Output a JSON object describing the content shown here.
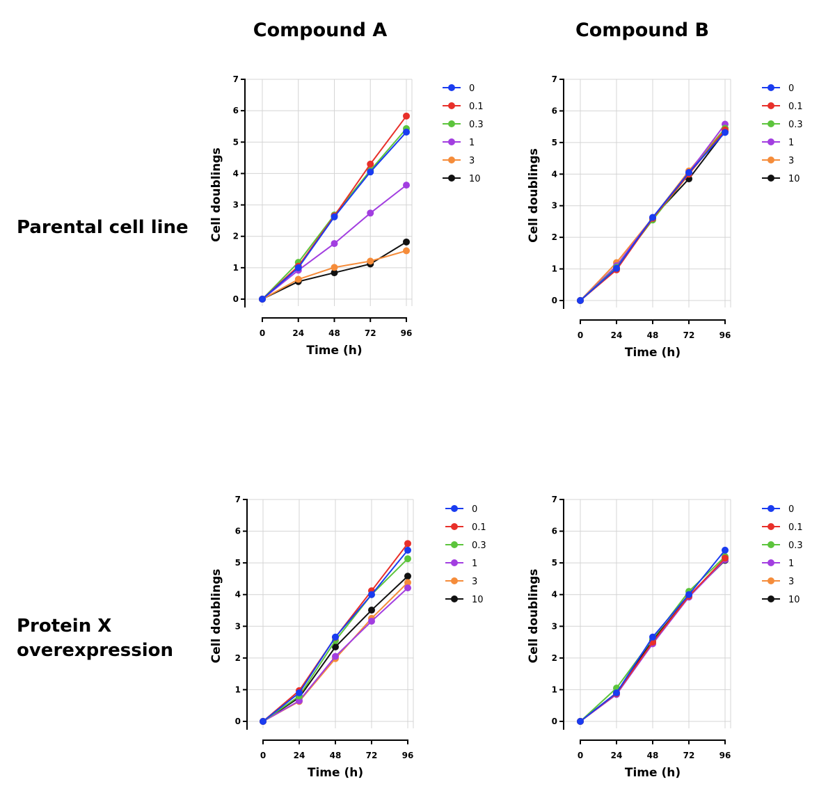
{
  "column_titles": [
    "Compound A",
    "Compound B"
  ],
  "row_titles": [
    "Parental cell line",
    "Protein X",
    "overexpression"
  ],
  "legend_colors": {
    "0": "#1a3cf0",
    "0.1": "#e8302a",
    "0.3": "#5cc43c",
    "1": "#a23ee0",
    "3": "#f58c3a",
    "10": "#111111"
  },
  "chart_data": [
    {
      "type": "line",
      "panel": "Compound A / Parental cell line",
      "xlabel": "Time (h)",
      "ylabel": "Cell doublings",
      "x": [
        0,
        24,
        48,
        72,
        96
      ],
      "xticks": [
        "0",
        "24",
        "48",
        "72",
        "96"
      ],
      "yticks": [
        "0",
        "1",
        "2",
        "3",
        "4",
        "5",
        "6",
        "7"
      ],
      "ylim": [
        0,
        7
      ],
      "grid": true,
      "legend": "right",
      "series": [
        {
          "name": "0",
          "values": [
            0,
            1.0,
            2.62,
            4.05,
            5.32
          ]
        },
        {
          "name": "0.1",
          "values": [
            0,
            1.05,
            2.65,
            4.3,
            5.83
          ]
        },
        {
          "name": "0.3",
          "values": [
            0,
            1.17,
            2.68,
            4.1,
            5.43
          ]
        },
        {
          "name": "1",
          "values": [
            0,
            0.92,
            1.77,
            2.74,
            3.63
          ]
        },
        {
          "name": "3",
          "values": [
            0,
            0.63,
            1.01,
            1.21,
            1.54
          ]
        },
        {
          "name": "10",
          "values": [
            0,
            0.56,
            0.84,
            1.12,
            1.82
          ]
        }
      ]
    },
    {
      "type": "line",
      "panel": "Compound B / Parental cell line",
      "xlabel": "Time (h)",
      "ylabel": "Cell doublings",
      "x": [
        0,
        24,
        48,
        72,
        96
      ],
      "xticks": [
        "0",
        "24",
        "48",
        "72",
        "96"
      ],
      "yticks": [
        "0",
        "1",
        "2",
        "3",
        "4",
        "5",
        "6",
        "7"
      ],
      "ylim": [
        0,
        7
      ],
      "grid": true,
      "legend": "right",
      "series": [
        {
          "name": "0",
          "values": [
            0,
            1.02,
            2.63,
            4.05,
            5.32
          ]
        },
        {
          "name": "0.1",
          "values": [
            0,
            0.97,
            2.6,
            4.0,
            5.4
          ]
        },
        {
          "name": "0.3",
          "values": [
            0,
            1.05,
            2.55,
            4.0,
            5.45
          ]
        },
        {
          "name": "1",
          "values": [
            0,
            1.1,
            2.62,
            4.05,
            5.58
          ]
        },
        {
          "name": "3",
          "values": [
            0,
            1.2,
            2.62,
            4.1,
            5.45
          ]
        },
        {
          "name": "10",
          "values": [
            0,
            1.0,
            2.62,
            3.85,
            5.35
          ]
        }
      ]
    },
    {
      "type": "line",
      "panel": "Compound A / Protein X overexpression",
      "xlabel": "Time (h)",
      "ylabel": "Cell doublings",
      "x": [
        0,
        24,
        48,
        72,
        96
      ],
      "xticks": [
        "0",
        "24",
        "48",
        "72",
        "96"
      ],
      "yticks": [
        "0",
        "1",
        "2",
        "3",
        "4",
        "5",
        "6",
        "7"
      ],
      "ylim": [
        0,
        7
      ],
      "grid": true,
      "legend": "right",
      "series": [
        {
          "name": "0",
          "values": [
            0,
            0.9,
            2.66,
            4.0,
            5.4
          ]
        },
        {
          "name": "0.1",
          "values": [
            0,
            0.97,
            2.65,
            4.12,
            5.61
          ]
        },
        {
          "name": "0.3",
          "values": [
            0,
            0.8,
            2.55,
            4.0,
            5.13
          ]
        },
        {
          "name": "1",
          "values": [
            0,
            0.65,
            2.05,
            3.16,
            4.21
          ]
        },
        {
          "name": "3",
          "values": [
            0,
            0.63,
            1.98,
            3.25,
            4.38
          ]
        },
        {
          "name": "10",
          "values": [
            0,
            0.75,
            2.35,
            3.51,
            4.58
          ]
        }
      ]
    },
    {
      "type": "line",
      "panel": "Compound B / Protein X overexpression",
      "xlabel": "Time (h)",
      "ylabel": "Cell doublings",
      "x": [
        0,
        24,
        48,
        72,
        96
      ],
      "xticks": [
        "0",
        "24",
        "48",
        "72",
        "96"
      ],
      "yticks": [
        "0",
        "1",
        "2",
        "3",
        "4",
        "5",
        "6",
        "7"
      ],
      "ylim": [
        0,
        7
      ],
      "grid": true,
      "legend": "right",
      "series": [
        {
          "name": "0",
          "values": [
            0,
            0.9,
            2.66,
            4.0,
            5.4
          ]
        },
        {
          "name": "0.1",
          "values": [
            0,
            0.88,
            2.5,
            3.95,
            5.15
          ]
        },
        {
          "name": "0.3",
          "values": [
            0,
            1.05,
            2.6,
            4.1,
            5.2
          ]
        },
        {
          "name": "1",
          "values": [
            0,
            0.85,
            2.45,
            3.92,
            5.1
          ]
        },
        {
          "name": "3",
          "values": [
            0,
            0.9,
            2.45,
            3.95,
            5.15
          ]
        },
        {
          "name": "10",
          "values": [
            0,
            0.9,
            2.55,
            3.95,
            5.08
          ]
        }
      ]
    }
  ]
}
